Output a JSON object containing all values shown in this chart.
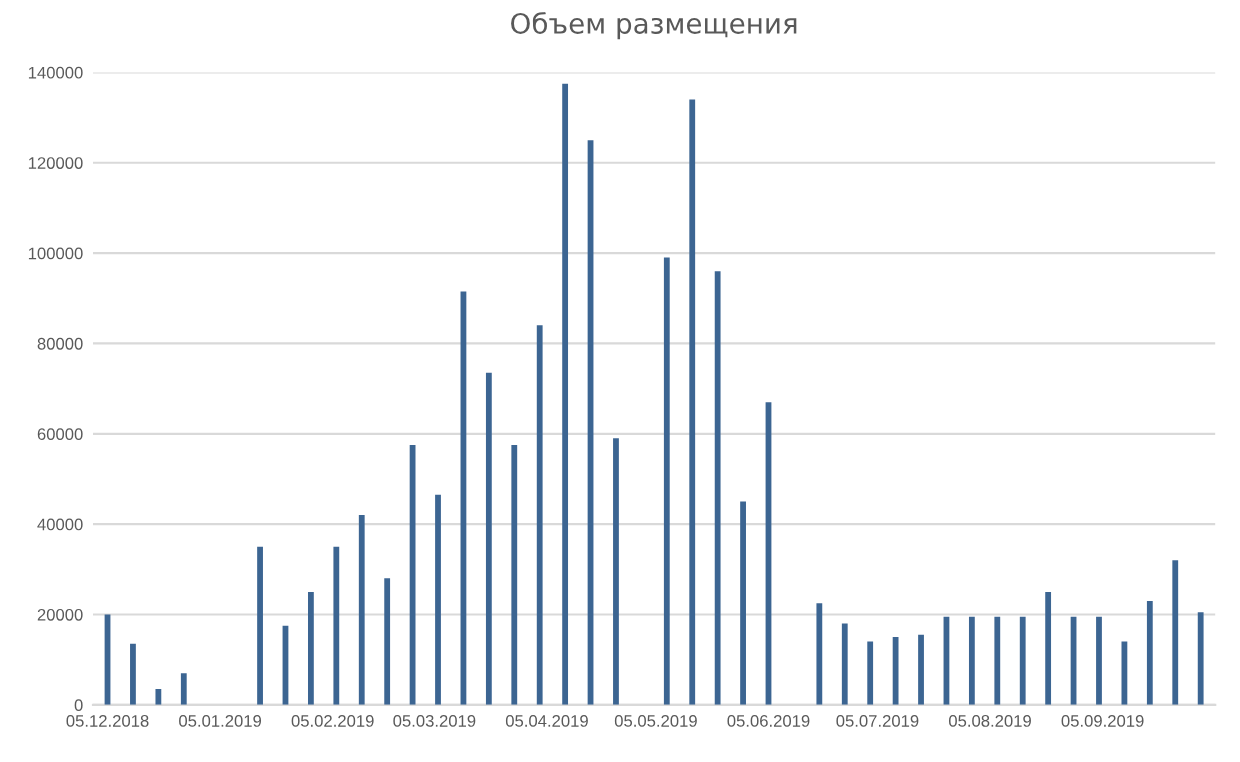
{
  "chart_data": {
    "type": "bar",
    "title": "Объем размещения",
    "x": [
      "2018-12-05",
      "2018-12-12",
      "2018-12-19",
      "2018-12-26",
      "2019-01-02",
      "2019-01-09",
      "2019-01-16",
      "2019-01-23",
      "2019-01-30",
      "2019-02-06",
      "2019-02-13",
      "2019-02-20",
      "2019-02-27",
      "2019-03-06",
      "2019-03-13",
      "2019-03-20",
      "2019-03-27",
      "2019-04-03",
      "2019-04-10",
      "2019-04-17",
      "2019-04-24",
      "2019-05-01",
      "2019-05-08",
      "2019-05-15",
      "2019-05-22",
      "2019-05-29",
      "2019-06-05",
      "2019-06-12",
      "2019-06-19",
      "2019-06-26",
      "2019-07-03",
      "2019-07-10",
      "2019-07-17",
      "2019-07-24",
      "2019-07-31",
      "2019-08-07",
      "2019-08-14",
      "2019-08-21",
      "2019-08-28",
      "2019-09-04",
      "2019-09-11",
      "2019-09-18",
      "2019-09-25",
      "2019-10-02"
    ],
    "values": [
      20000,
      13500,
      3500,
      7000,
      null,
      null,
      35000,
      17500,
      25000,
      35000,
      42000,
      28000,
      57500,
      46500,
      91500,
      73500,
      57500,
      84000,
      137500,
      125000,
      59000,
      null,
      99000,
      134000,
      96000,
      45000,
      67000,
      null,
      22500,
      18000,
      14000,
      15000,
      15500,
      19500,
      19500,
      19500,
      19500,
      25000,
      19500,
      19500,
      14000,
      23000,
      32000,
      20500
    ],
    "color": "#3c6592",
    "xlim": [
      "2018-12-01",
      "2019-10-06"
    ],
    "xticks": [
      {
        "value": "2018-12-05",
        "label": "05.12.2018"
      },
      {
        "value": "2019-01-05",
        "label": "05.01.2019"
      },
      {
        "value": "2019-02-05",
        "label": "05.02.2019"
      },
      {
        "value": "2019-03-05",
        "label": "05.03.2019"
      },
      {
        "value": "2019-04-05",
        "label": "05.04.2019"
      },
      {
        "value": "2019-05-05",
        "label": "05.05.2019"
      },
      {
        "value": "2019-06-05",
        "label": "05.06.2019"
      },
      {
        "value": "2019-07-05",
        "label": "05.07.2019"
      },
      {
        "value": "2019-08-05",
        "label": "05.08.2019"
      },
      {
        "value": "2019-09-05",
        "label": "05.09.2019"
      }
    ],
    "ylim": [
      0,
      140000
    ],
    "yticks": [
      0,
      20000,
      40000,
      60000,
      80000,
      100000,
      120000,
      140000
    ],
    "grid": "y"
  }
}
